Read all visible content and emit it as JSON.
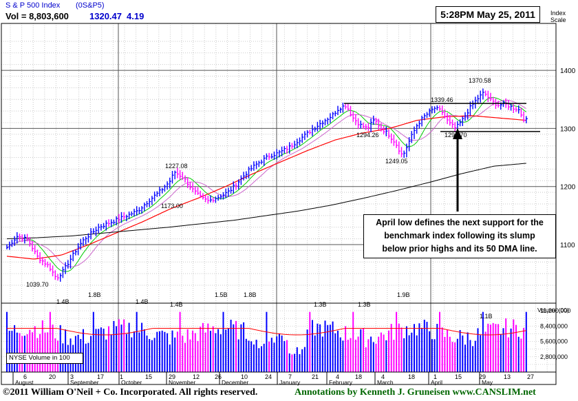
{
  "header": {
    "index_name": "S & P 500 Index",
    "symbol": "(0S&P5)",
    "vol_label": "Vol = 8,803,600",
    "price": "1320.47",
    "change": "4.19",
    "timestamp": "5:28PM May 25, 2011",
    "scale_label_1": "Index",
    "scale_label_2": "Scale"
  },
  "annotation": {
    "line1": "April low defines the next support for the",
    "line2": "benchmark index following its slump",
    "line3": "below prior highs and its 50 DMA line."
  },
  "volume_panel": {
    "label": "NYSE Volume in 100",
    "axis_title": "Volume (00)",
    "ticks": [
      "11,200,000",
      "8,400,000",
      "5,600,000",
      "2,800,000"
    ],
    "tick_values": [
      11200000,
      8400000,
      5600000,
      2800000
    ]
  },
  "footer": {
    "copyright": "©2011 William O'Neil + Co. Incorporated. All rights reserved.",
    "annotations": "Annotations by Kenneth J. Gruneisen www.CANSLIM.net"
  },
  "colors": {
    "up_bar": "#0000ff",
    "down_bar": "#ff00ff",
    "ma50": "#ff0000",
    "ma200": "#000000",
    "ma10": "#00cc00",
    "ma20": "#cc66cc",
    "volume_avg": "#ff0000",
    "text_blue": "#0000cc",
    "footer_green": "#006600"
  },
  "chart_data": {
    "type": "line",
    "title": "S & P 500 Index",
    "y_ticks": [
      1100,
      1200,
      1300,
      1400
    ],
    "ylim": [
      1020,
      1460
    ],
    "x_months": [
      "August",
      "September",
      "October",
      "November",
      "December",
      "January",
      "February",
      "March",
      "April",
      "May"
    ],
    "x_day_ticks": [
      "6",
      "20",
      "3",
      "17",
      "1",
      "15",
      "29",
      "12",
      "26",
      "10",
      "24",
      "7",
      "21",
      "4",
      "18",
      "4",
      "18",
      "1",
      "15",
      "29",
      "13",
      "27"
    ],
    "price_labels": [
      {
        "text": "1039.70",
        "value": 1039.7
      },
      {
        "text": "1227.08",
        "value": 1227.08
      },
      {
        "text": "1173.00",
        "value": 1173.0
      },
      {
        "text": "1294.26",
        "value": 1294.26
      },
      {
        "text": "1249.05",
        "value": 1249.05
      },
      {
        "text": "1339.46",
        "value": 1339.46
      },
      {
        "text": "1294.70",
        "value": 1294.7
      },
      {
        "text": "1370.58",
        "value": 1370.58
      }
    ],
    "volume_labels": [
      "1.4B",
      "1.8B",
      "1.4B",
      "1.4B",
      "1.5B",
      "1.8B",
      "1.3B",
      "1.3B",
      "1.9B",
      "1.1B"
    ],
    "support_levels": [
      1343,
      1294.7
    ],
    "ma200": [
      1110,
      1112,
      1115,
      1120,
      1125,
      1130,
      1136,
      1142,
      1150,
      1158,
      1168,
      1180,
      1193,
      1207,
      1222,
      1235,
      1240
    ],
    "ma50": [
      1080,
      1075,
      1082,
      1100,
      1120,
      1140,
      1162,
      1180,
      1200,
      1222,
      1242,
      1262,
      1280,
      1292,
      1300,
      1314,
      1320,
      1322,
      1318,
      1314
    ]
  }
}
